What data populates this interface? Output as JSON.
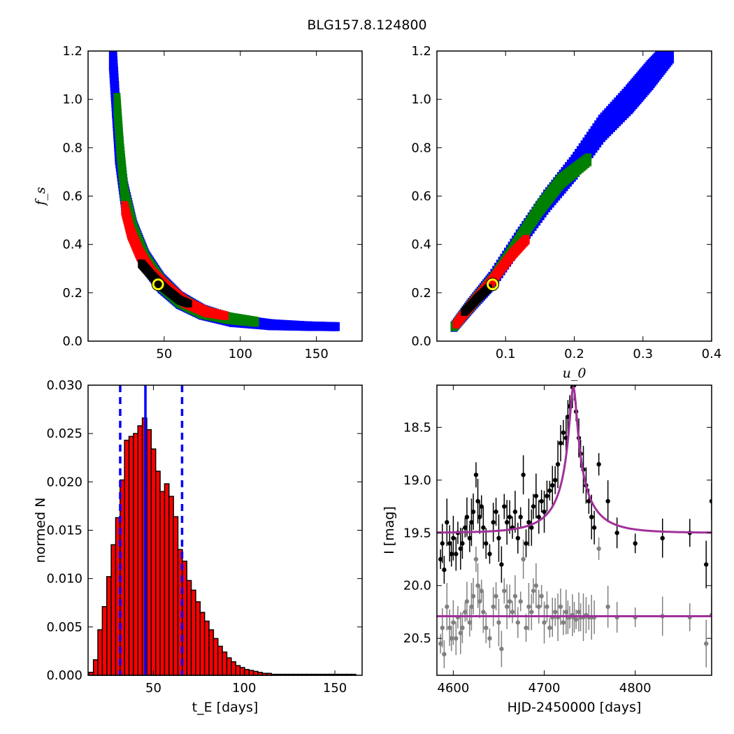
{
  "figure": {
    "suptitle": "BLG157.8.124800"
  },
  "colors": {
    "contour_1sigma": "#000000",
    "contour_2sigma": "#ff0000",
    "contour_3sigma": "#008000",
    "contour_4sigma": "#0000ff",
    "marker": "#ffff00",
    "hist_bar": "#ff0000",
    "median_line": "#0000ff",
    "model_line": "#a0309a",
    "data_points": "#000000",
    "residual_points": "#808080"
  },
  "chart_data": [
    {
      "id": "tE_vs_fs",
      "type": "heatmap",
      "title": "",
      "xlabel": "",
      "ylabel": "f_s",
      "xlim": [
        0,
        180
      ],
      "ylim": [
        0.0,
        1.2
      ],
      "xticks": [
        50,
        100,
        150
      ],
      "yticks": [
        0.0,
        0.2,
        0.4,
        0.6,
        0.8,
        1.0,
        1.2
      ],
      "ytick_labels": [
        "0.0",
        "0.2",
        "0.4",
        "0.6",
        "0.8",
        "1.0",
        "1.2"
      ],
      "best_fit": {
        "x": 46,
        "y": 0.235
      },
      "levels": [
        {
          "sigma": 4,
          "color": "#0000ff",
          "points": [
            [
              16,
              1.2
            ],
            [
              18,
              1.0
            ],
            [
              20,
              0.8
            ],
            [
              24,
              0.6
            ],
            [
              30,
              0.45
            ],
            [
              38,
              0.33
            ],
            [
              48,
              0.24
            ],
            [
              60,
              0.17
            ],
            [
              75,
              0.12
            ],
            [
              95,
              0.085
            ],
            [
              120,
              0.068
            ],
            [
              145,
              0.062
            ],
            [
              163,
              0.06
            ]
          ],
          "width": [
            0.14,
            0.13,
            0.12,
            0.1,
            0.08,
            0.07,
            0.06,
            0.05,
            0.04,
            0.03,
            0.022,
            0.016,
            0.014
          ]
        },
        {
          "sigma": 3,
          "color": "#008000",
          "points": [
            [
              19,
              0.98
            ],
            [
              21,
              0.8
            ],
            [
              24,
              0.6
            ],
            [
              30,
              0.45
            ],
            [
              38,
              0.33
            ],
            [
              48,
              0.24
            ],
            [
              60,
              0.17
            ],
            [
              75,
              0.12
            ],
            [
              92,
              0.095
            ],
            [
              110,
              0.08
            ]
          ],
          "width": [
            0.07,
            0.07,
            0.07,
            0.06,
            0.05,
            0.045,
            0.04,
            0.032,
            0.025,
            0.018
          ]
        },
        {
          "sigma": 2,
          "color": "#ff0000",
          "points": [
            [
              24,
              0.55
            ],
            [
              28,
              0.45
            ],
            [
              34,
              0.36
            ],
            [
              42,
              0.28
            ],
            [
              52,
              0.22
            ],
            [
              64,
              0.16
            ],
            [
              78,
              0.12
            ],
            [
              90,
              0.105
            ]
          ],
          "width": [
            0.035,
            0.035,
            0.033,
            0.03,
            0.027,
            0.022,
            0.018,
            0.012
          ]
        },
        {
          "sigma": 1,
          "color": "#000000",
          "points": [
            [
              35,
              0.32
            ],
            [
              42,
              0.27
            ],
            [
              50,
              0.22
            ],
            [
              60,
              0.17
            ],
            [
              66,
              0.155
            ]
          ],
          "width": [
            0.012,
            0.012,
            0.011,
            0.01,
            0.008
          ]
        }
      ]
    },
    {
      "id": "u0_vs_fs",
      "type": "heatmap",
      "title": "",
      "xlabel": "u_0",
      "ylabel": "",
      "xlim": [
        0.0,
        0.4
      ],
      "ylim": [
        0.0,
        1.2
      ],
      "xticks": [
        0.1,
        0.2,
        0.3,
        0.4
      ],
      "xtick_labels": [
        "0.1",
        "0.2",
        "0.3",
        "0.4"
      ],
      "yticks": [
        0.0,
        0.2,
        0.4,
        0.6,
        0.8,
        1.0,
        1.2
      ],
      "ytick_labels": [
        "0.0",
        "0.2",
        "0.4",
        "0.6",
        "0.8",
        "1.0",
        "1.2"
      ],
      "best_fit": {
        "x": 0.081,
        "y": 0.235
      },
      "levels": [
        {
          "sigma": 4,
          "color": "#0000ff",
          "points": [
            [
              0.025,
              0.06
            ],
            [
              0.05,
              0.15
            ],
            [
              0.08,
              0.25
            ],
            [
              0.12,
              0.42
            ],
            [
              0.16,
              0.58
            ],
            [
              0.2,
              0.72
            ],
            [
              0.24,
              0.88
            ],
            [
              0.28,
              1.0
            ],
            [
              0.31,
              1.1
            ],
            [
              0.34,
              1.2
            ]
          ],
          "width": [
            0.02,
            0.035,
            0.05,
            0.06,
            0.07,
            0.08,
            0.09,
            0.1,
            0.1,
            0.08
          ]
        },
        {
          "sigma": 3,
          "color": "#008000",
          "points": [
            [
              0.025,
              0.06
            ],
            [
              0.05,
              0.15
            ],
            [
              0.08,
              0.25
            ],
            [
              0.12,
              0.42
            ],
            [
              0.15,
              0.55
            ],
            [
              0.18,
              0.66
            ],
            [
              0.22,
              0.75
            ]
          ],
          "width": [
            0.015,
            0.025,
            0.03,
            0.035,
            0.04,
            0.04,
            0.03
          ]
        },
        {
          "sigma": 2,
          "color": "#ff0000",
          "points": [
            [
              0.028,
              0.07
            ],
            [
              0.05,
              0.15
            ],
            [
              0.08,
              0.25
            ],
            [
              0.11,
              0.36
            ],
            [
              0.13,
              0.42
            ]
          ],
          "width": [
            0.012,
            0.018,
            0.02,
            0.02,
            0.015
          ]
        },
        {
          "sigma": 1,
          "color": "#000000",
          "points": [
            [
              0.04,
              0.12
            ],
            [
              0.06,
              0.18
            ],
            [
              0.075,
              0.22
            ]
          ],
          "width": [
            0.008,
            0.009,
            0.008
          ]
        }
      ]
    },
    {
      "id": "tE_histogram",
      "type": "bar",
      "title": "",
      "xlabel": "t_E [days]",
      "ylabel": "normed N",
      "xlim": [
        14,
        165
      ],
      "ylim": [
        0.0,
        0.03
      ],
      "xticks": [
        50,
        100,
        150
      ],
      "yticks": [
        0.0,
        0.005,
        0.01,
        0.015,
        0.02,
        0.025,
        0.03
      ],
      "ytick_labels": [
        "0.000",
        "0.005",
        "0.010",
        "0.015",
        "0.020",
        "0.025",
        "0.030"
      ],
      "bin_width": 2.45,
      "bin_start": 14.5,
      "values": [
        0.0003,
        0.0016,
        0.0047,
        0.0071,
        0.0102,
        0.0135,
        0.0163,
        0.0202,
        0.0243,
        0.0247,
        0.025,
        0.0258,
        0.0266,
        0.0254,
        0.0234,
        0.0211,
        0.019,
        0.0198,
        0.0185,
        0.0164,
        0.013,
        0.0118,
        0.0098,
        0.0088,
        0.0076,
        0.0065,
        0.0056,
        0.0047,
        0.0038,
        0.003,
        0.0024,
        0.0018,
        0.0014,
        0.001,
        0.0008,
        0.0006,
        0.0005,
        0.0004,
        0.0003,
        0.0002,
        0.0002,
        0.0001,
        0.0001,
        0.0001,
        0.0001,
        0.0001,
        0.0001,
        0.0001,
        0.0001,
        0.0001,
        0.0001,
        0.0001,
        0.0001,
        0.0001,
        0.0001,
        0.0001,
        0.0001,
        0.0001,
        0.0001,
        0.0001
      ],
      "median": 45.6,
      "percentile_16": 31.7,
      "percentile_84": 65.8
    },
    {
      "id": "light_curve",
      "type": "scatter",
      "title": "",
      "xlabel": "HJD-2450000 [days]",
      "ylabel": "I [mag]",
      "xlim": [
        4582,
        4884
      ],
      "ylim": [
        20.85,
        18.1
      ],
      "y_inverted": true,
      "xticks": [
        4600,
        4700,
        4800
      ],
      "yticks": [
        18.5,
        19.0,
        19.5,
        20.0,
        20.5
      ],
      "ytick_labels": [
        "18.5",
        "19.0",
        "19.5",
        "20.0",
        "20.5"
      ],
      "model": {
        "baseline": 19.5,
        "peak_time": 4732,
        "peak_mag": 18.12,
        "u0": 0.08,
        "tE": 46
      },
      "residual_baseline": 20.29,
      "series": [
        {
          "kind": "data",
          "x": [
            4586,
            4588,
            4590,
            4593,
            4596,
            4598,
            4600,
            4603,
            4605,
            4608,
            4610,
            4613,
            4615,
            4618,
            4620,
            4622,
            4625,
            4627,
            4629,
            4631,
            4633,
            4636,
            4640,
            4644,
            4647,
            4650,
            4653,
            4656,
            4659,
            4662,
            4665,
            4668,
            4671,
            4674,
            4677,
            4680,
            4683,
            4686,
            4688,
            4691,
            4694,
            4697,
            4700,
            4703,
            4706,
            4709,
            4712,
            4715,
            4718,
            4721,
            4724,
            4726,
            4728,
            4731,
            4733,
            4735,
            4738,
            4740,
            4743,
            4746,
            4749,
            4752,
            4755,
            4760,
            4770,
            4780,
            4800,
            4830,
            4860,
            4878,
            4884
          ],
          "y": [
            19.75,
            19.6,
            19.85,
            19.4,
            19.6,
            19.7,
            19.55,
            19.7,
            19.5,
            19.65,
            19.6,
            19.45,
            19.35,
            19.55,
            19.4,
            19.3,
            18.95,
            19.2,
            19.35,
            19.25,
            19.45,
            19.6,
            19.7,
            19.4,
            19.3,
            19.55,
            19.8,
            19.25,
            19.4,
            19.35,
            19.45,
            19.3,
            19.55,
            19.35,
            18.95,
            19.6,
            19.4,
            19.45,
            19.25,
            19.15,
            19.35,
            19.2,
            19.3,
            19.15,
            19.1,
            19.05,
            19.0,
            18.85,
            18.65,
            18.55,
            18.6,
            18.4,
            18.3,
            18.12,
            18.1,
            18.35,
            18.6,
            18.75,
            18.9,
            19.05,
            19.2,
            19.35,
            19.45,
            18.85,
            19.2,
            19.5,
            19.6,
            19.55,
            19.5,
            19.8,
            19.2
          ]
        },
        {
          "kind": "residual",
          "x": [
            4586,
            4588,
            4590,
            4593,
            4596,
            4598,
            4600,
            4603,
            4605,
            4608,
            4610,
            4613,
            4615,
            4618,
            4620,
            4622,
            4625,
            4627,
            4629,
            4631,
            4633,
            4636,
            4640,
            4644,
            4647,
            4650,
            4653,
            4656,
            4659,
            4662,
            4665,
            4668,
            4671,
            4674,
            4677,
            4680,
            4683,
            4686,
            4688,
            4691,
            4694,
            4697,
            4700,
            4703,
            4706,
            4709,
            4712,
            4715,
            4718,
            4721,
            4724,
            4726,
            4728,
            4731,
            4733,
            4735,
            4738,
            4740,
            4743,
            4746,
            4749,
            4752,
            4755,
            4760,
            4770,
            4780,
            4800,
            4830,
            4860,
            4878,
            4884
          ],
          "y": [
            20.55,
            20.4,
            20.65,
            20.2,
            20.4,
            20.5,
            20.35,
            20.5,
            20.3,
            20.45,
            20.4,
            20.25,
            20.15,
            20.35,
            20.2,
            20.1,
            19.75,
            20.0,
            20.15,
            20.05,
            20.25,
            20.4,
            20.5,
            20.2,
            20.1,
            20.35,
            20.6,
            20.05,
            20.2,
            20.15,
            20.25,
            20.1,
            20.35,
            20.15,
            19.75,
            20.4,
            20.2,
            20.25,
            20.05,
            20.0,
            20.2,
            20.1,
            20.35,
            20.2,
            20.4,
            20.3,
            20.25,
            20.3,
            20.2,
            20.35,
            20.25,
            20.3,
            20.3,
            20.28,
            20.3,
            20.32,
            20.25,
            20.3,
            20.3,
            20.28,
            20.3,
            20.3,
            20.3,
            19.65,
            20.2,
            20.3,
            20.3,
            20.29,
            20.3,
            20.55,
            20.28
          ]
        }
      ]
    }
  ]
}
